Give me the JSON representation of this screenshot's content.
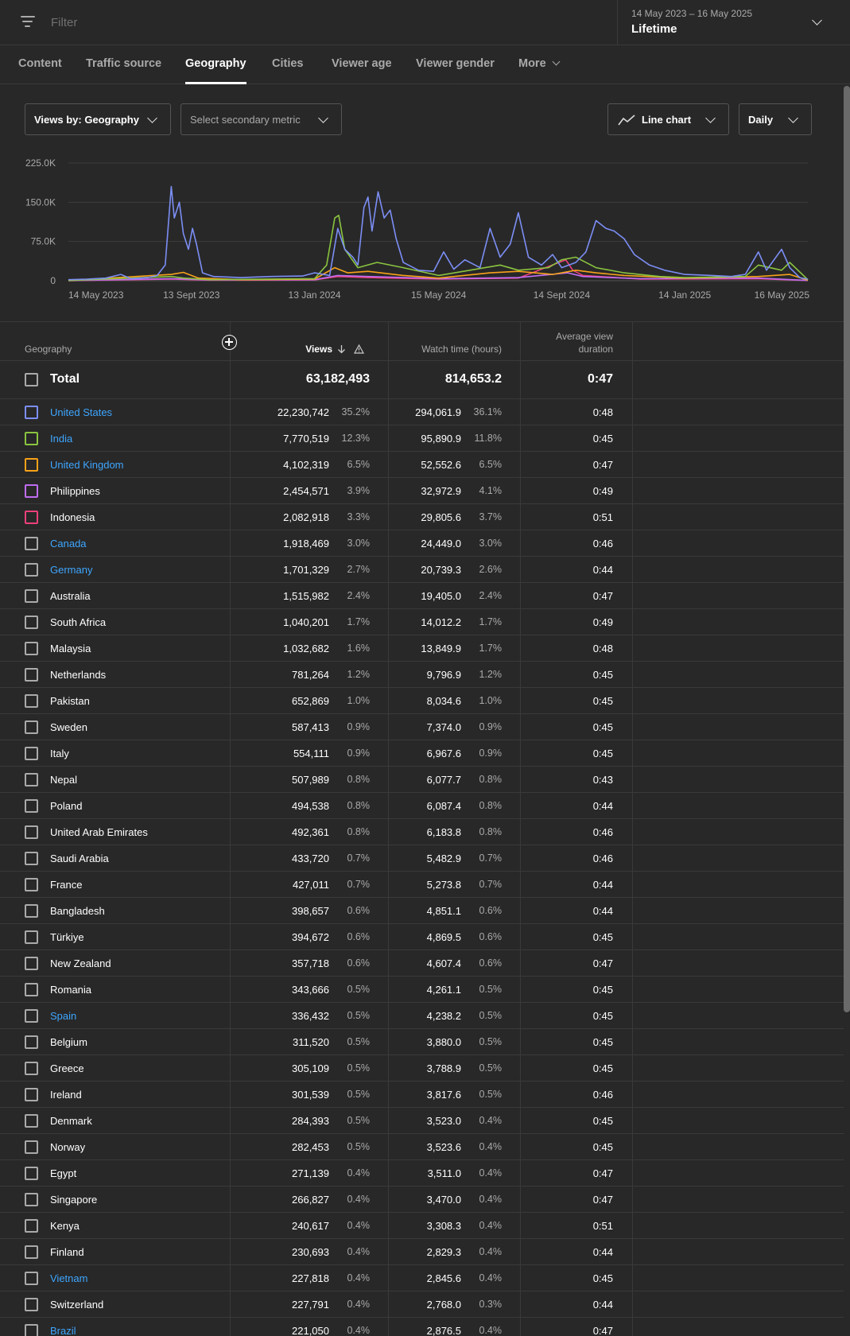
{
  "filter": {
    "placeholder": "Filter",
    "icon": "filter-icon"
  },
  "date": {
    "range": "14 May 2023 – 16 May 2025",
    "period": "Lifetime"
  },
  "tabs": [
    {
      "label": "Content",
      "active": false
    },
    {
      "label": "Traffic source",
      "active": false
    },
    {
      "label": "Geography",
      "active": true
    },
    {
      "label": "Cities",
      "active": false
    },
    {
      "label": "Viewer age",
      "active": false
    },
    {
      "label": "Viewer gender",
      "active": false
    },
    {
      "label": "More",
      "active": false
    }
  ],
  "controls": {
    "primary_metric": "Views by: Geography",
    "secondary_metric": "Select secondary metric",
    "chart_type": "Line chart",
    "granularity": "Daily"
  },
  "chart_data": {
    "type": "line",
    "y_ticks": [
      "225.0K",
      "150.0K",
      "75.0K",
      "0"
    ],
    "y_tick_values": [
      225000,
      150000,
      75000,
      0
    ],
    "ylim": [
      0,
      225000
    ],
    "x_ticks": [
      "14 May 2023",
      "13 Sept 2023",
      "13 Jan 2024",
      "15 May 2024",
      "14 Sept 2024",
      "14 Jan 2025",
      "16 May 2025"
    ],
    "x_tick_dates": [
      "2023-05-14",
      "2023-09-13",
      "2024-01-13",
      "2024-05-15",
      "2024-09-14",
      "2025-01-14",
      "2025-05-16"
    ],
    "grid": true,
    "series": [
      {
        "name": "United States",
        "color": "#7c8ef5",
        "points": [
          [
            "2023-05-14",
            2000
          ],
          [
            "2023-06-01",
            3000
          ],
          [
            "2023-06-20",
            5000
          ],
          [
            "2023-07-05",
            12000
          ],
          [
            "2023-07-15",
            4000
          ],
          [
            "2023-08-01",
            6000
          ],
          [
            "2023-08-10",
            10000
          ],
          [
            "2023-08-18",
            30000
          ],
          [
            "2023-08-24",
            180000
          ],
          [
            "2023-08-27",
            120000
          ],
          [
            "2023-09-01",
            150000
          ],
          [
            "2023-09-05",
            90000
          ],
          [
            "2023-09-10",
            60000
          ],
          [
            "2023-09-14",
            100000
          ],
          [
            "2023-09-18",
            70000
          ],
          [
            "2023-09-24",
            15000
          ],
          [
            "2023-10-05",
            8000
          ],
          [
            "2023-11-01",
            6000
          ],
          [
            "2023-12-01",
            8000
          ],
          [
            "2024-01-01",
            9000
          ],
          [
            "2024-01-13",
            15000
          ],
          [
            "2024-01-28",
            10000
          ],
          [
            "2024-02-05",
            100000
          ],
          [
            "2024-02-12",
            60000
          ],
          [
            "2024-02-20",
            45000
          ],
          [
            "2024-02-25",
            30000
          ],
          [
            "2024-03-02",
            140000
          ],
          [
            "2024-03-06",
            160000
          ],
          [
            "2024-03-10",
            95000
          ],
          [
            "2024-03-16",
            170000
          ],
          [
            "2024-03-22",
            120000
          ],
          [
            "2024-03-28",
            135000
          ],
          [
            "2024-04-03",
            80000
          ],
          [
            "2024-04-10",
            35000
          ],
          [
            "2024-04-25",
            20000
          ],
          [
            "2024-05-10",
            18000
          ],
          [
            "2024-05-20",
            55000
          ],
          [
            "2024-05-30",
            22000
          ],
          [
            "2024-06-10",
            40000
          ],
          [
            "2024-06-25",
            25000
          ],
          [
            "2024-07-05",
            100000
          ],
          [
            "2024-07-15",
            45000
          ],
          [
            "2024-07-25",
            70000
          ],
          [
            "2024-08-02",
            130000
          ],
          [
            "2024-08-12",
            45000
          ],
          [
            "2024-08-25",
            30000
          ],
          [
            "2024-09-05",
            50000
          ],
          [
            "2024-09-14",
            25000
          ],
          [
            "2024-09-28",
            35000
          ],
          [
            "2024-10-08",
            55000
          ],
          [
            "2024-10-18",
            115000
          ],
          [
            "2024-10-28",
            100000
          ],
          [
            "2024-11-05",
            95000
          ],
          [
            "2024-11-15",
            80000
          ],
          [
            "2024-11-25",
            50000
          ],
          [
            "2024-12-10",
            30000
          ],
          [
            "2024-12-25",
            20000
          ],
          [
            "2025-01-14",
            12000
          ],
          [
            "2025-02-10",
            10000
          ],
          [
            "2025-03-01",
            8000
          ],
          [
            "2025-03-15",
            12000
          ],
          [
            "2025-03-28",
            55000
          ],
          [
            "2025-04-05",
            20000
          ],
          [
            "2025-04-20",
            60000
          ],
          [
            "2025-04-28",
            25000
          ],
          [
            "2025-05-08",
            6000
          ],
          [
            "2025-05-16",
            3000
          ]
        ]
      },
      {
        "name": "India",
        "color": "#8ac43f",
        "points": [
          [
            "2023-05-14",
            500
          ],
          [
            "2023-08-24",
            8000
          ],
          [
            "2023-09-05",
            5000
          ],
          [
            "2023-10-01",
            2000
          ],
          [
            "2024-01-13",
            4000
          ],
          [
            "2024-01-25",
            30000
          ],
          [
            "2024-02-02",
            120000
          ],
          [
            "2024-02-06",
            125000
          ],
          [
            "2024-02-12",
            60000
          ],
          [
            "2024-02-25",
            25000
          ],
          [
            "2024-03-15",
            35000
          ],
          [
            "2024-04-10",
            25000
          ],
          [
            "2024-05-15",
            10000
          ],
          [
            "2024-06-15",
            20000
          ],
          [
            "2024-07-15",
            30000
          ],
          [
            "2024-08-02",
            20000
          ],
          [
            "2024-09-01",
            25000
          ],
          [
            "2024-09-14",
            40000
          ],
          [
            "2024-09-28",
            45000
          ],
          [
            "2024-10-18",
            25000
          ],
          [
            "2024-11-15",
            15000
          ],
          [
            "2024-12-20",
            8000
          ],
          [
            "2025-01-14",
            6000
          ],
          [
            "2025-03-15",
            8000
          ],
          [
            "2025-03-28",
            30000
          ],
          [
            "2025-04-20",
            20000
          ],
          [
            "2025-04-28",
            35000
          ],
          [
            "2025-05-16",
            2000
          ]
        ]
      },
      {
        "name": "United Kingdom",
        "color": "#f7a21a",
        "points": [
          [
            "2023-05-14",
            300
          ],
          [
            "2023-08-24",
            12000
          ],
          [
            "2023-09-05",
            16000
          ],
          [
            "2023-09-20",
            5000
          ],
          [
            "2023-11-01",
            2000
          ],
          [
            "2024-01-13",
            3000
          ],
          [
            "2024-02-02",
            25000
          ],
          [
            "2024-02-15",
            15000
          ],
          [
            "2024-03-06",
            18000
          ],
          [
            "2024-04-10",
            10000
          ],
          [
            "2024-05-15",
            5000
          ],
          [
            "2024-07-05",
            15000
          ],
          [
            "2024-08-02",
            18000
          ],
          [
            "2024-09-05",
            12000
          ],
          [
            "2024-09-28",
            20000
          ],
          [
            "2024-10-18",
            15000
          ],
          [
            "2024-11-15",
            10000
          ],
          [
            "2025-01-14",
            5000
          ],
          [
            "2025-03-28",
            8000
          ],
          [
            "2025-04-28",
            12000
          ],
          [
            "2025-05-16",
            1000
          ]
        ]
      },
      {
        "name": "Philippines",
        "color": "#bf6df2",
        "points": [
          [
            "2023-05-14",
            200
          ],
          [
            "2023-08-24",
            4000
          ],
          [
            "2023-10-01",
            1500
          ],
          [
            "2024-01-13",
            2000
          ],
          [
            "2024-02-05",
            10000
          ],
          [
            "2024-03-06",
            8000
          ],
          [
            "2024-05-15",
            4000
          ],
          [
            "2024-08-02",
            6000
          ],
          [
            "2024-09-20",
            15000
          ],
          [
            "2024-10-05",
            8000
          ],
          [
            "2024-12-01",
            4000
          ],
          [
            "2025-03-28",
            5000
          ],
          [
            "2025-05-16",
            500
          ]
        ]
      },
      {
        "name": "Indonesia",
        "color": "#ec407a",
        "points": [
          [
            "2023-05-14",
            100
          ],
          [
            "2023-08-24",
            3000
          ],
          [
            "2023-10-01",
            1000
          ],
          [
            "2024-01-13",
            1500
          ],
          [
            "2024-02-05",
            8000
          ],
          [
            "2024-03-06",
            6000
          ],
          [
            "2024-05-15",
            3000
          ],
          [
            "2024-08-02",
            5000
          ],
          [
            "2024-09-18",
            40000
          ],
          [
            "2024-09-25",
            20000
          ],
          [
            "2024-10-05",
            10000
          ],
          [
            "2024-12-01",
            3000
          ],
          [
            "2025-03-28",
            4000
          ],
          [
            "2025-05-16",
            500
          ]
        ]
      }
    ]
  },
  "table": {
    "headers": {
      "geography": "Geography",
      "views": "Views",
      "watch_time": "Watch time (hours)",
      "avd_line1": "Average view",
      "avd_line2": "duration"
    },
    "total": {
      "label": "Total",
      "views": "63,182,493",
      "watch": "814,653.2",
      "avd": "0:47"
    },
    "rows": [
      {
        "name": "United States",
        "link": true,
        "color": "#7c8ef5",
        "views": "22,230,742",
        "vpct": "35.2%",
        "watch": "294,061.9",
        "wpct": "36.1%",
        "avd": "0:48"
      },
      {
        "name": "India",
        "link": true,
        "color": "#8ac43f",
        "views": "7,770,519",
        "vpct": "12.3%",
        "watch": "95,890.9",
        "wpct": "11.8%",
        "avd": "0:45"
      },
      {
        "name": "United Kingdom",
        "link": true,
        "color": "#f7a21a",
        "views": "4,102,319",
        "vpct": "6.5%",
        "watch": "52,552.6",
        "wpct": "6.5%",
        "avd": "0:47"
      },
      {
        "name": "Philippines",
        "link": false,
        "color": "#bf6df2",
        "views": "2,454,571",
        "vpct": "3.9%",
        "watch": "32,972.9",
        "wpct": "4.1%",
        "avd": "0:49"
      },
      {
        "name": "Indonesia",
        "link": false,
        "color": "#ec407a",
        "views": "2,082,918",
        "vpct": "3.3%",
        "watch": "29,805.6",
        "wpct": "3.7%",
        "avd": "0:51"
      },
      {
        "name": "Canada",
        "link": true,
        "color": "",
        "views": "1,918,469",
        "vpct": "3.0%",
        "watch": "24,449.0",
        "wpct": "3.0%",
        "avd": "0:46"
      },
      {
        "name": "Germany",
        "link": true,
        "color": "",
        "views": "1,701,329",
        "vpct": "2.7%",
        "watch": "20,739.3",
        "wpct": "2.6%",
        "avd": "0:44"
      },
      {
        "name": "Australia",
        "link": false,
        "color": "",
        "views": "1,515,982",
        "vpct": "2.4%",
        "watch": "19,405.0",
        "wpct": "2.4%",
        "avd": "0:47"
      },
      {
        "name": "South Africa",
        "link": false,
        "color": "",
        "views": "1,040,201",
        "vpct": "1.7%",
        "watch": "14,012.2",
        "wpct": "1.7%",
        "avd": "0:49"
      },
      {
        "name": "Malaysia",
        "link": false,
        "color": "",
        "views": "1,032,682",
        "vpct": "1.6%",
        "watch": "13,849.9",
        "wpct": "1.7%",
        "avd": "0:48"
      },
      {
        "name": "Netherlands",
        "link": false,
        "color": "",
        "views": "781,264",
        "vpct": "1.2%",
        "watch": "9,796.9",
        "wpct": "1.2%",
        "avd": "0:45"
      },
      {
        "name": "Pakistan",
        "link": false,
        "color": "",
        "views": "652,869",
        "vpct": "1.0%",
        "watch": "8,034.6",
        "wpct": "1.0%",
        "avd": "0:45"
      },
      {
        "name": "Sweden",
        "link": false,
        "color": "",
        "views": "587,413",
        "vpct": "0.9%",
        "watch": "7,374.0",
        "wpct": "0.9%",
        "avd": "0:45"
      },
      {
        "name": "Italy",
        "link": false,
        "color": "",
        "views": "554,111",
        "vpct": "0.9%",
        "watch": "6,967.6",
        "wpct": "0.9%",
        "avd": "0:45"
      },
      {
        "name": "Nepal",
        "link": false,
        "color": "",
        "views": "507,989",
        "vpct": "0.8%",
        "watch": "6,077.7",
        "wpct": "0.8%",
        "avd": "0:43"
      },
      {
        "name": "Poland",
        "link": false,
        "color": "",
        "views": "494,538",
        "vpct": "0.8%",
        "watch": "6,087.4",
        "wpct": "0.8%",
        "avd": "0:44"
      },
      {
        "name": "United Arab Emirates",
        "link": false,
        "color": "",
        "views": "492,361",
        "vpct": "0.8%",
        "watch": "6,183.8",
        "wpct": "0.8%",
        "avd": "0:46"
      },
      {
        "name": "Saudi Arabia",
        "link": false,
        "color": "",
        "views": "433,720",
        "vpct": "0.7%",
        "watch": "5,482.9",
        "wpct": "0.7%",
        "avd": "0:46"
      },
      {
        "name": "France",
        "link": false,
        "color": "",
        "views": "427,011",
        "vpct": "0.7%",
        "watch": "5,273.8",
        "wpct": "0.7%",
        "avd": "0:44"
      },
      {
        "name": "Bangladesh",
        "link": false,
        "color": "",
        "views": "398,657",
        "vpct": "0.6%",
        "watch": "4,851.1",
        "wpct": "0.6%",
        "avd": "0:44"
      },
      {
        "name": "Türkiye",
        "link": false,
        "color": "",
        "views": "394,672",
        "vpct": "0.6%",
        "watch": "4,869.5",
        "wpct": "0.6%",
        "avd": "0:45"
      },
      {
        "name": "New Zealand",
        "link": false,
        "color": "",
        "views": "357,718",
        "vpct": "0.6%",
        "watch": "4,607.4",
        "wpct": "0.6%",
        "avd": "0:47"
      },
      {
        "name": "Romania",
        "link": false,
        "color": "",
        "views": "343,666",
        "vpct": "0.5%",
        "watch": "4,261.1",
        "wpct": "0.5%",
        "avd": "0:45"
      },
      {
        "name": "Spain",
        "link": true,
        "color": "",
        "views": "336,432",
        "vpct": "0.5%",
        "watch": "4,238.2",
        "wpct": "0.5%",
        "avd": "0:45"
      },
      {
        "name": "Belgium",
        "link": false,
        "color": "",
        "views": "311,520",
        "vpct": "0.5%",
        "watch": "3,880.0",
        "wpct": "0.5%",
        "avd": "0:45"
      },
      {
        "name": "Greece",
        "link": false,
        "color": "",
        "views": "305,109",
        "vpct": "0.5%",
        "watch": "3,788.9",
        "wpct": "0.5%",
        "avd": "0:45"
      },
      {
        "name": "Ireland",
        "link": false,
        "color": "",
        "views": "301,539",
        "vpct": "0.5%",
        "watch": "3,817.6",
        "wpct": "0.5%",
        "avd": "0:46"
      },
      {
        "name": "Denmark",
        "link": false,
        "color": "",
        "views": "284,393",
        "vpct": "0.5%",
        "watch": "3,523.0",
        "wpct": "0.4%",
        "avd": "0:45"
      },
      {
        "name": "Norway",
        "link": false,
        "color": "",
        "views": "282,453",
        "vpct": "0.5%",
        "watch": "3,523.6",
        "wpct": "0.4%",
        "avd": "0:45"
      },
      {
        "name": "Egypt",
        "link": false,
        "color": "",
        "views": "271,139",
        "vpct": "0.4%",
        "watch": "3,511.0",
        "wpct": "0.4%",
        "avd": "0:47"
      },
      {
        "name": "Singapore",
        "link": false,
        "color": "",
        "views": "266,827",
        "vpct": "0.4%",
        "watch": "3,470.0",
        "wpct": "0.4%",
        "avd": "0:47"
      },
      {
        "name": "Kenya",
        "link": false,
        "color": "",
        "views": "240,617",
        "vpct": "0.4%",
        "watch": "3,308.3",
        "wpct": "0.4%",
        "avd": "0:51"
      },
      {
        "name": "Finland",
        "link": false,
        "color": "",
        "views": "230,693",
        "vpct": "0.4%",
        "watch": "2,829.3",
        "wpct": "0.4%",
        "avd": "0:44"
      },
      {
        "name": "Vietnam",
        "link": true,
        "color": "",
        "views": "227,818",
        "vpct": "0.4%",
        "watch": "2,845.6",
        "wpct": "0.4%",
        "avd": "0:45"
      },
      {
        "name": "Switzerland",
        "link": false,
        "color": "",
        "views": "227,791",
        "vpct": "0.4%",
        "watch": "2,768.0",
        "wpct": "0.3%",
        "avd": "0:44"
      },
      {
        "name": "Brazil",
        "link": true,
        "color": "",
        "views": "221,050",
        "vpct": "0.4%",
        "watch": "2,876.5",
        "wpct": "0.4%",
        "avd": "0:47"
      }
    ]
  }
}
